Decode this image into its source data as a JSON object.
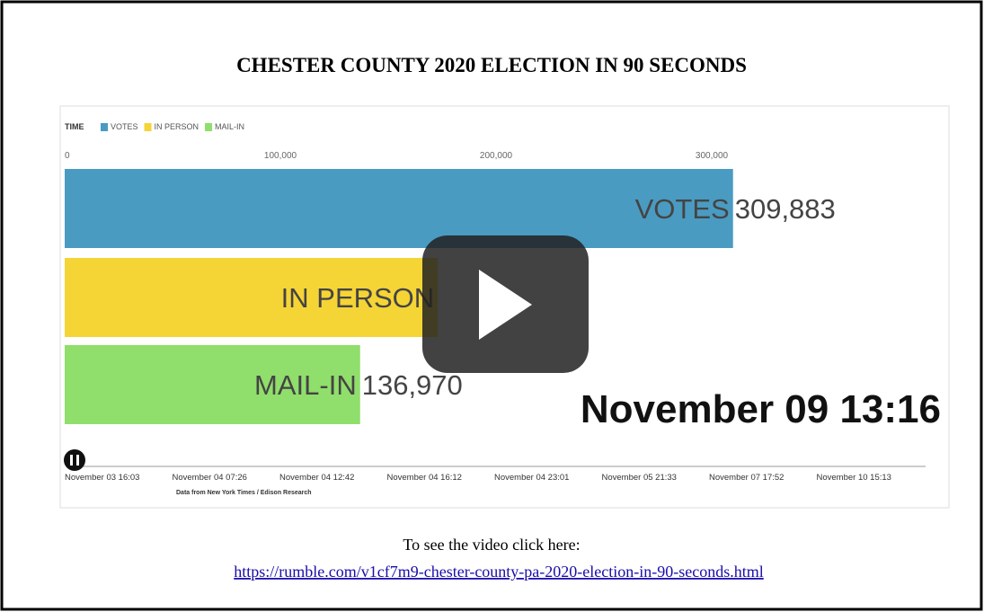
{
  "header": {
    "title": "CHESTER COUNTY 2020 ELECTION IN 90 SECONDS"
  },
  "chart_data": {
    "type": "bar",
    "orientation": "horizontal",
    "legend_title": "TIME",
    "categories": [
      "VOTES",
      "IN PERSON",
      "MAIL-IN"
    ],
    "values": [
      309883,
      173000,
      136970
    ],
    "value_labels": [
      "309,883",
      null,
      "136,970"
    ],
    "colors": [
      "#4a9bc2",
      "#f5d435",
      "#90de6b"
    ],
    "xlim": [
      0,
      400000
    ],
    "xticks": [
      0,
      {
        "value": 100000,
        "label": "100,000"
      },
      {
        "value": 200000,
        "label": "200,000"
      },
      {
        "value": 300000,
        "label": "300,000"
      }
    ],
    "grid": false,
    "legend": "top-left"
  },
  "video": {
    "current_time": "November 09 13:16",
    "timeline": [
      "November 03 16:03",
      "November 04 07:26",
      "November 04 12:42",
      "November 04 16:12",
      "November 04 23:01",
      "November 05 21:33",
      "November 07 17:52",
      "November 10 15:13"
    ],
    "source": "Data from New York Times / Edison Research"
  },
  "caption": {
    "text": "To see the video click here:",
    "link": "https://rumble.com/v1cf7m9-chester-county-pa-2020-election-in-90-seconds.html"
  }
}
